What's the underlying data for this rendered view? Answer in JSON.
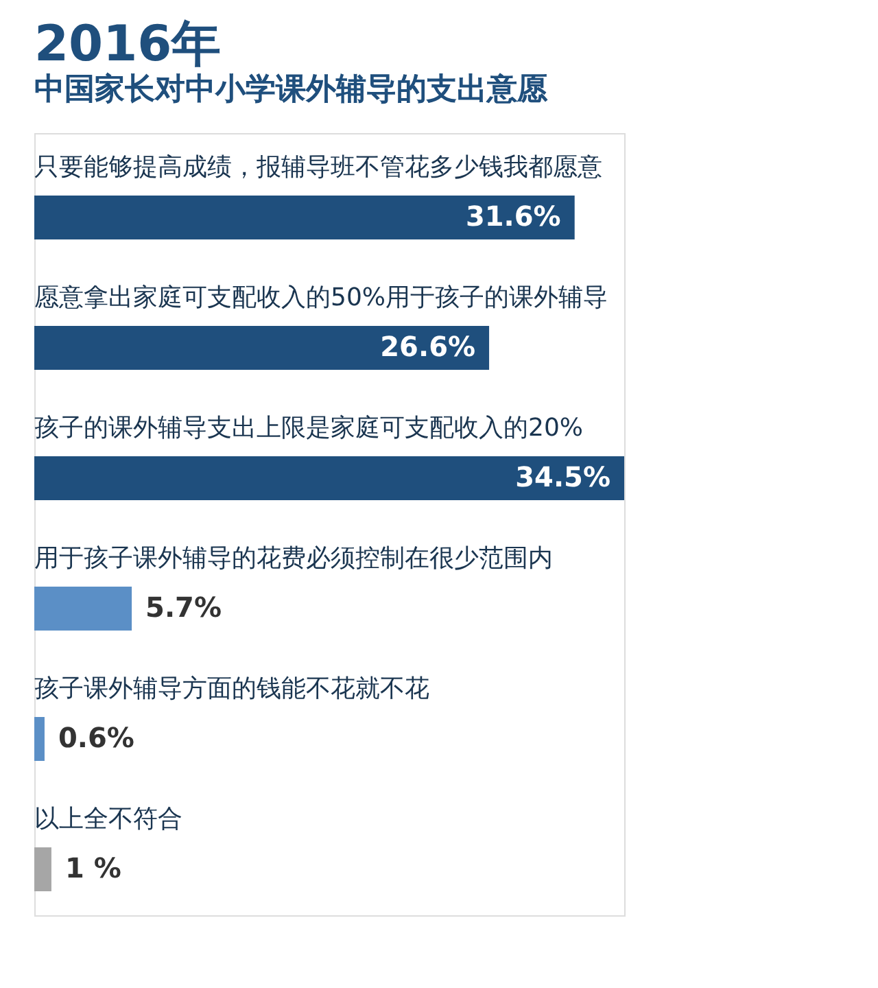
{
  "chart_data": {
    "type": "bar",
    "orientation": "horizontal",
    "title": "2016年",
    "subtitle": "中国家长对中小学课外辅导的支出意愿",
    "categories": [
      "只要能够提高成绩，报辅导班不管花多少钱我都愿意",
      "愿意拿出家庭可支配收入的50%用于孩子的课外辅导",
      "孩子的课外辅导支出上限是家庭可支配收入的20%",
      "用于孩子课外辅导的花费必须控制在很少范围内",
      "孩子课外辅导方面的钱能不花就不花",
      "以上全不符合"
    ],
    "values": [
      31.6,
      26.6,
      34.5,
      5.7,
      0.6,
      1
    ],
    "colors": [
      "#1f4f7d",
      "#1f4f7d",
      "#1f4f7d",
      "#5b8fc6",
      "#5b8fc6",
      "#a6a6a6"
    ],
    "value_labels": [
      "31.6%",
      "26.6%",
      "34.5%",
      "5.7%",
      "0.6%",
      "1 %"
    ],
    "data_labels": true
  }
}
